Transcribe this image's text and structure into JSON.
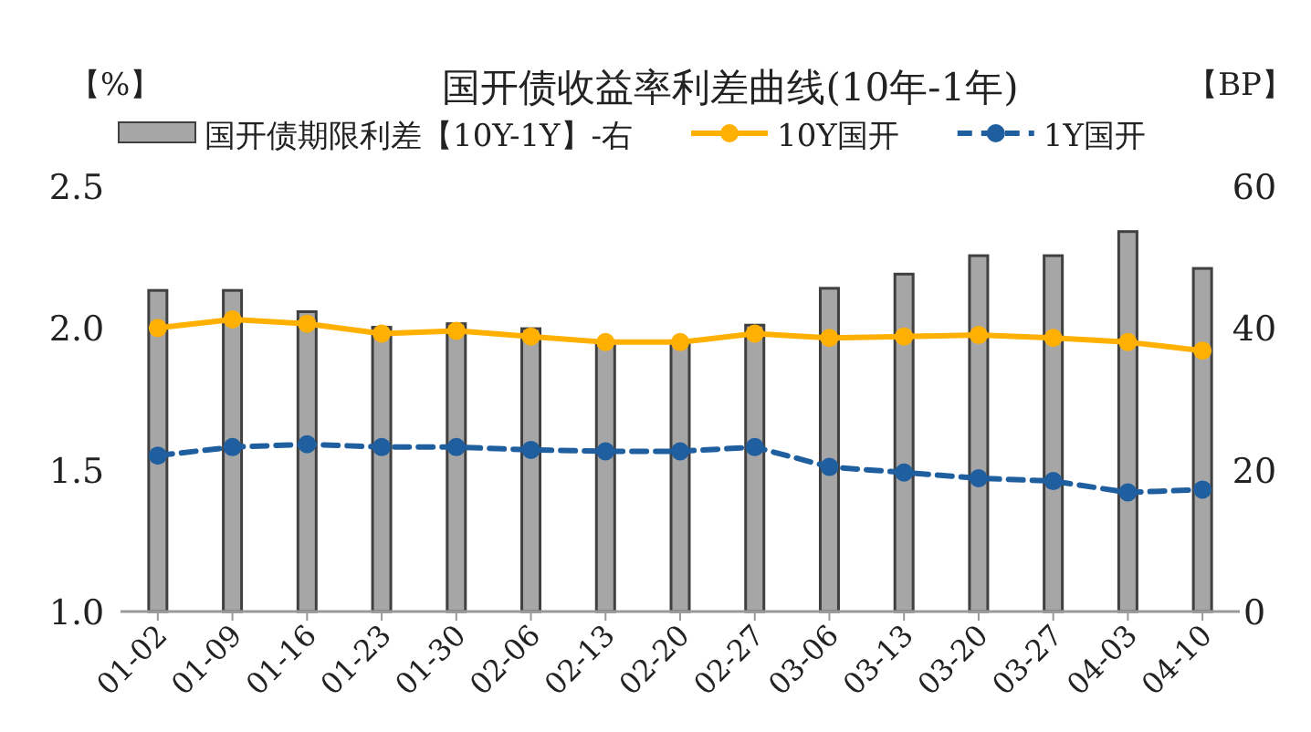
{
  "chart_data": {
    "type": "line",
    "title": "国开债收益率利差曲线(10年-1年)",
    "ylabel": "【%】",
    "y2label": "【BP】",
    "categories": [
      "01-02",
      "01-09",
      "01-16",
      "01-23",
      "01-30",
      "02-06",
      "02-13",
      "02-20",
      "02-27",
      "03-06",
      "03-13",
      "03-20",
      "03-27",
      "04-03",
      "04-10"
    ],
    "series": [
      {
        "name": "国开债期限利差【10Y-1Y】-右",
        "type": "bar",
        "axis": "y2",
        "color": "#a6a6a6",
        "values": [
          45.3,
          45.3,
          42.3,
          40.1,
          40.6,
          39.9,
          38.0,
          38.0,
          40.4,
          45.6,
          47.6,
          50.2,
          50.2,
          53.6,
          48.4
        ]
      },
      {
        "name": "10Y国开",
        "color": "#ffb000",
        "marker": "circle",
        "line_style": "solid",
        "values": [
          2.0,
          2.03,
          2.015,
          1.98,
          1.99,
          1.97,
          1.95,
          1.95,
          1.98,
          1.965,
          1.97,
          1.975,
          1.965,
          1.95,
          1.92
        ]
      },
      {
        "name": "1Y国开",
        "color": "#1f5f9f",
        "marker": "circle",
        "line_style": "dashed",
        "values": [
          1.55,
          1.58,
          1.59,
          1.58,
          1.58,
          1.57,
          1.565,
          1.565,
          1.58,
          1.51,
          1.49,
          1.47,
          1.46,
          1.42,
          1.43
        ]
      }
    ],
    "ylim": [
      1.0,
      2.5
    ],
    "yticks": [
      {
        "value": 1.0,
        "label": "1.0"
      },
      {
        "value": 1.5,
        "label": "1.5"
      },
      {
        "value": 2.0,
        "label": "2.0"
      },
      {
        "value": 2.5,
        "label": "2.5"
      }
    ],
    "y2lim": [
      0,
      60
    ],
    "y2ticks": [
      0,
      20,
      40,
      60
    ],
    "grid": false,
    "legend": "top"
  }
}
